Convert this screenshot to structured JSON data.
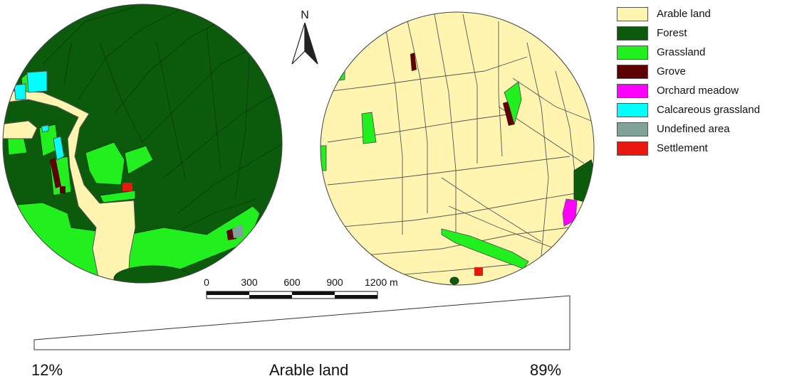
{
  "north_label": "N",
  "legend": [
    {
      "label": "Arable land",
      "color": "#fff5b0"
    },
    {
      "label": "Forest",
      "color": "#0c5b0c"
    },
    {
      "label": "Grassland",
      "color": "#22f01e"
    },
    {
      "label": "Grove",
      "color": "#5c0000"
    },
    {
      "label": "Orchard meadow",
      "color": "#ff00ff"
    },
    {
      "label": "Calcareous grassland",
      "color": "#00ffff"
    },
    {
      "label": "Undefined area",
      "color": "#7fa39a"
    },
    {
      "label": "Settlement",
      "color": "#e8170f"
    }
  ],
  "scale_bar": {
    "ticks": [
      "0",
      "300",
      "600",
      "900",
      "1200 m"
    ]
  },
  "gradient": {
    "left_label": "12%",
    "center_label": "Arable land",
    "right_label": "89%"
  },
  "chart_data": {
    "type": "map",
    "left_map_arable_share_percent": 12,
    "right_map_arable_share_percent": 89
  }
}
